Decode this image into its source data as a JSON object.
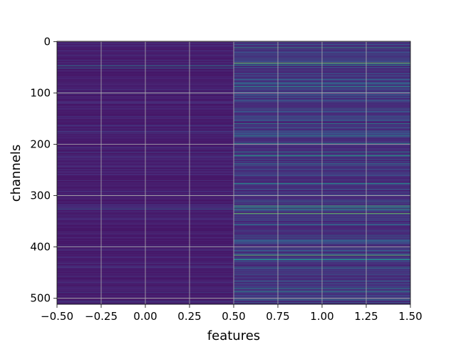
{
  "chart_data": {
    "type": "heatmap",
    "title": "",
    "xlabel": "features",
    "ylabel": "channels",
    "xlim": [
      -0.5,
      1.5
    ],
    "ylim": [
      511.5,
      -0.5
    ],
    "x_ticks": [
      -0.5,
      -0.25,
      0.0,
      0.25,
      0.5,
      0.75,
      1.0,
      1.25,
      1.5
    ],
    "x_tick_labels": [
      "−0.50",
      "−0.25",
      "0.00",
      "0.25",
      "0.50",
      "0.75",
      "1.00",
      "1.25",
      "1.50"
    ],
    "y_ticks": [
      0,
      100,
      200,
      300,
      400,
      500
    ],
    "y_tick_labels": [
      "0",
      "100",
      "200",
      "300",
      "400",
      "500"
    ],
    "grid": true,
    "colormap": "viridis",
    "columns": [
      0,
      1
    ],
    "rows": 512,
    "bright_rows": {
      "column_0": [
        {
          "row": 47,
          "level": 0.48
        },
        {
          "row": 52,
          "level": 0.35
        },
        {
          "row": 163,
          "level": 0.22
        },
        {
          "row": 176,
          "level": 0.2
        },
        {
          "row": 326,
          "level": 0.3
        },
        {
          "row": 489,
          "level": 0.22
        },
        {
          "row": 505,
          "level": 0.2
        }
      ],
      "column_1": [
        {
          "row": 12,
          "level": 0.6
        },
        {
          "row": 42,
          "level": 0.8
        },
        {
          "row": 46,
          "level": 0.55
        },
        {
          "row": 88,
          "level": 0.55
        },
        {
          "row": 160,
          "level": 0.5
        },
        {
          "row": 183,
          "level": 0.5
        },
        {
          "row": 199,
          "level": 0.55
        },
        {
          "row": 215,
          "level": 0.5
        },
        {
          "row": 222,
          "level": 0.6
        },
        {
          "row": 238,
          "level": 0.45
        },
        {
          "row": 276,
          "level": 0.55
        },
        {
          "row": 320,
          "level": 0.7
        },
        {
          "row": 323,
          "level": 0.55
        },
        {
          "row": 326,
          "level": 0.6
        },
        {
          "row": 335,
          "level": 0.8
        },
        {
          "row": 357,
          "level": 0.45
        },
        {
          "row": 416,
          "level": 0.75
        },
        {
          "row": 425,
          "level": 0.55
        },
        {
          "row": 441,
          "level": 0.45
        },
        {
          "row": 480,
          "level": 0.45
        },
        {
          "row": 487,
          "level": 0.5
        },
        {
          "row": 502,
          "level": 0.45
        }
      ]
    }
  }
}
